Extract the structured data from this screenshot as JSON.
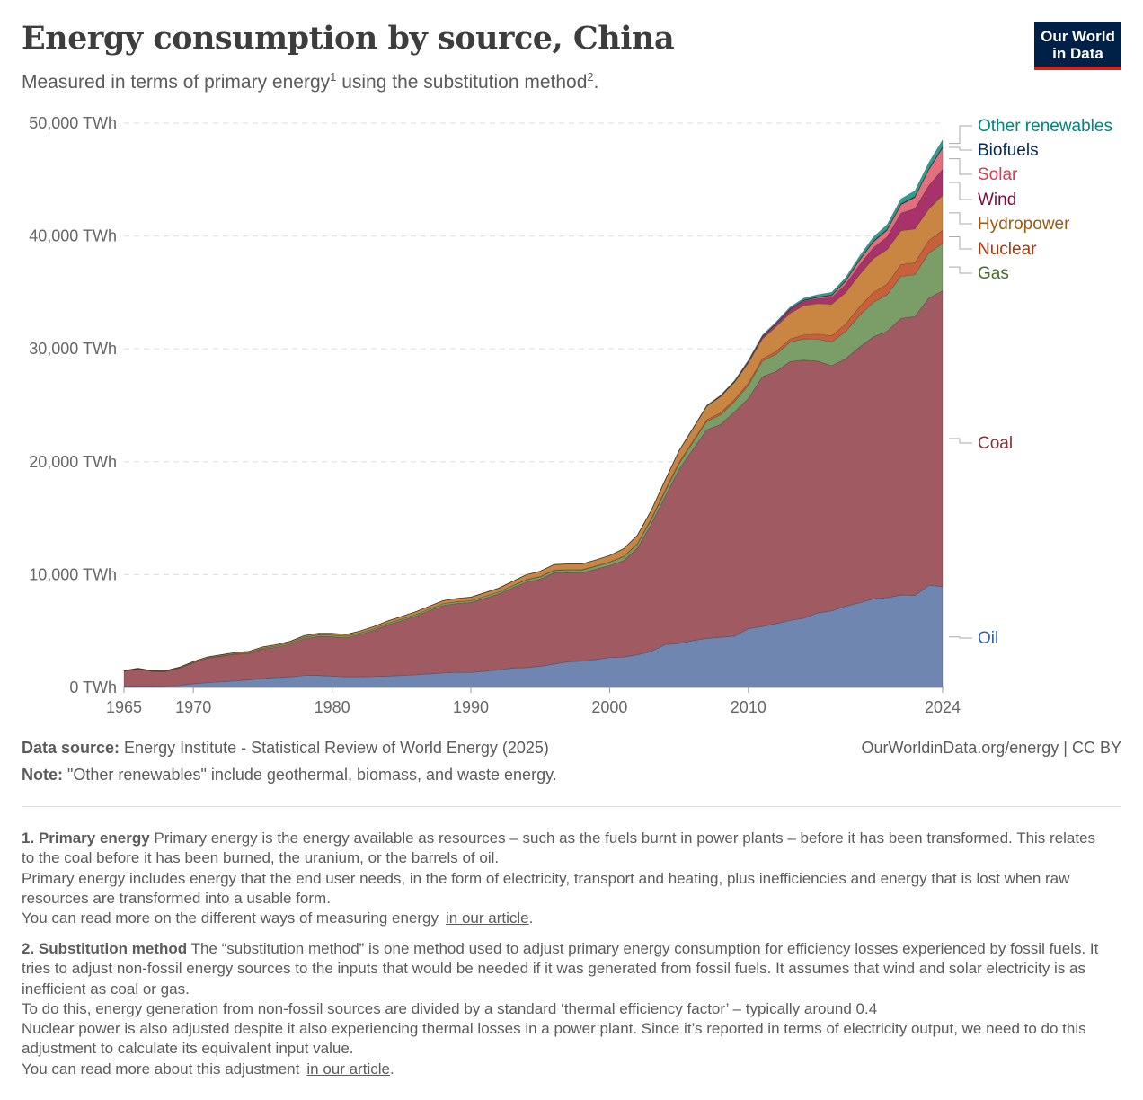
{
  "header": {
    "title": "Energy consumption by source, China",
    "subtitle_a": "Measured in terms of primary energy",
    "subtitle_sup1": "1",
    "subtitle_b": " using the substitution method",
    "subtitle_sup2": "2",
    "subtitle_c": ".",
    "logo": "Our World in Data"
  },
  "chart_data": {
    "type": "area",
    "stacked": true,
    "title": "Energy consumption by source, China",
    "ylabel": "",
    "ylim": [
      0,
      50000
    ],
    "yticks": [
      "0 TWh",
      "10,000 TWh",
      "20,000 TWh",
      "30,000 TWh",
      "40,000 TWh",
      "50,000 TWh"
    ],
    "ytick_values": [
      0,
      10000,
      20000,
      30000,
      40000,
      50000
    ],
    "xticks": [
      "1965",
      "1970",
      "1980",
      "1990",
      "2000",
      "2010",
      "2024"
    ],
    "xtick_values": [
      1965,
      1970,
      1980,
      1990,
      2000,
      2010,
      2024
    ],
    "grid": "horizontal dashed",
    "legend": "right, inline labels",
    "x_start": 1965,
    "x_end": 2024,
    "series": [
      {
        "name": "Oil",
        "color": "#6e86b0",
        "label_color": "#3360a9",
        "values": [
          110,
          120,
          120,
          130,
          180,
          330,
          420,
          500,
          580,
          680,
          800,
          880,
          950,
          1060,
          1070,
          1000,
          950,
          950,
          970,
          1000,
          1060,
          1130,
          1200,
          1290,
          1340,
          1330,
          1440,
          1570,
          1720,
          1760,
          1880,
          2080,
          2280,
          2330,
          2480,
          2650,
          2700,
          2900,
          3200,
          3800,
          3900,
          4150,
          4350,
          4450,
          4550,
          5200,
          5400,
          5650,
          5950,
          6150,
          6600,
          6800,
          7200,
          7500,
          7850,
          7950,
          8200,
          8150,
          9050,
          8950
        ]
      },
      {
        "name": "Coal",
        "color": "#a05a61",
        "label_color": "#883039",
        "values": [
          1340,
          1525,
          1320,
          1305,
          1540,
          1860,
          2150,
          2255,
          2355,
          2340,
          2590,
          2685,
          2900,
          3260,
          3435,
          3500,
          3445,
          3730,
          4090,
          4545,
          4860,
          5180,
          5600,
          5980,
          6100,
          6190,
          6460,
          6720,
          7110,
          7580,
          7710,
          8080,
          7910,
          7840,
          7995,
          8155,
          8545,
          9460,
          11260,
          13130,
          15405,
          16955,
          18485,
          18855,
          19865,
          20420,
          22125,
          22355,
          22930,
          22865,
          22310,
          21710,
          21910,
          22650,
          23220,
          23610,
          24510,
          24720,
          25450,
          26200
        ]
      },
      {
        "name": "Gas",
        "color": "#7b9e68",
        "label_color": "#4c6a2e",
        "values": [
          10,
          10,
          10,
          10,
          15,
          30,
          40,
          50,
          60,
          70,
          90,
          110,
          120,
          140,
          150,
          150,
          140,
          140,
          140,
          140,
          150,
          150,
          150,
          160,
          160,
          160,
          170,
          170,
          180,
          190,
          200,
          210,
          220,
          230,
          250,
          280,
          320,
          340,
          380,
          430,
          500,
          600,
          720,
          850,
          920,
          1150,
          1380,
          1520,
          1700,
          1880,
          1960,
          2100,
          2420,
          2800,
          3040,
          3250,
          3720,
          3700,
          4000,
          4200
        ]
      },
      {
        "name": "Nuclear",
        "color": "#c9603c",
        "label_color": "#b13507",
        "values": [
          0,
          0,
          0,
          0,
          0,
          0,
          0,
          0,
          0,
          0,
          0,
          0,
          0,
          0,
          0,
          0,
          0,
          0,
          0,
          0,
          0,
          0,
          0,
          0,
          0,
          0,
          0,
          0,
          0,
          40,
          40,
          40,
          40,
          40,
          45,
          45,
          45,
          65,
          110,
          130,
          135,
          140,
          160,
          175,
          180,
          190,
          230,
          250,
          290,
          340,
          440,
          550,
          640,
          760,
          880,
          930,
          1040,
          1060,
          1100,
          1150
        ]
      },
      {
        "name": "Hydropower",
        "color": "#c88642",
        "label_color": "#9a5c10",
        "values": [
          40,
          45,
          50,
          55,
          65,
          80,
          90,
          95,
          105,
          110,
          120,
          125,
          130,
          140,
          145,
          150,
          165,
          180,
          200,
          215,
          230,
          240,
          250,
          270,
          300,
          320,
          330,
          340,
          390,
          430,
          470,
          490,
          500,
          510,
          530,
          560,
          680,
          720,
          730,
          880,
          1020,
          1090,
          1200,
          1450,
          1520,
          1800,
          1730,
          2200,
          2280,
          2600,
          2700,
          2800,
          2800,
          2850,
          3000,
          3050,
          3000,
          3000,
          2800,
          3100
        ]
      },
      {
        "name": "Wind",
        "color": "#a8336a",
        "label_color": "#7a0c3b",
        "values": [
          0,
          0,
          0,
          0,
          0,
          0,
          0,
          0,
          0,
          0,
          0,
          0,
          0,
          0,
          0,
          0,
          0,
          0,
          0,
          0,
          0,
          0,
          0,
          0,
          0,
          0,
          0,
          0,
          0,
          0,
          0,
          0,
          0,
          0,
          0,
          0,
          0,
          0,
          0,
          0,
          0,
          10,
          15,
          35,
          70,
          120,
          190,
          250,
          340,
          380,
          440,
          580,
          720,
          850,
          950,
          1120,
          1550,
          1800,
          2060,
          2300
        ]
      },
      {
        "name": "Solar",
        "color": "#e2707d",
        "label_color": "#d73c50",
        "values": [
          0,
          0,
          0,
          0,
          0,
          0,
          0,
          0,
          0,
          0,
          0,
          0,
          0,
          0,
          0,
          0,
          0,
          0,
          0,
          0,
          0,
          0,
          0,
          0,
          0,
          0,
          0,
          0,
          0,
          0,
          0,
          0,
          0,
          0,
          0,
          0,
          0,
          0,
          0,
          0,
          0,
          0,
          0,
          0,
          0,
          2,
          5,
          10,
          20,
          60,
          95,
          170,
          290,
          420,
          530,
          610,
          750,
          990,
          1400,
          1900
        ]
      },
      {
        "name": "Biofuels",
        "color": "#2a3560",
        "label_color": "#00295b",
        "values": [
          0,
          0,
          0,
          0,
          0,
          0,
          0,
          0,
          0,
          0,
          0,
          0,
          0,
          0,
          0,
          0,
          0,
          0,
          0,
          0,
          0,
          0,
          0,
          0,
          0,
          0,
          0,
          0,
          0,
          0,
          0,
          0,
          0,
          0,
          0,
          0,
          0,
          5,
          10,
          15,
          20,
          25,
          30,
          35,
          35,
          40,
          40,
          45,
          50,
          55,
          55,
          60,
          60,
          70,
          80,
          80,
          80,
          80,
          90,
          100
        ]
      },
      {
        "name": "Other renewables",
        "color": "#2f9e8f",
        "label_color": "#00847e",
        "values": [
          0,
          0,
          0,
          0,
          0,
          0,
          0,
          0,
          0,
          0,
          0,
          0,
          0,
          0,
          0,
          0,
          0,
          0,
          0,
          0,
          0,
          0,
          0,
          0,
          0,
          0,
          0,
          0,
          0,
          0,
          0,
          0,
          0,
          0,
          0,
          10,
          10,
          10,
          12,
          15,
          20,
          30,
          40,
          50,
          60,
          80,
          100,
          120,
          140,
          170,
          200,
          230,
          260,
          300,
          350,
          400,
          450,
          500,
          550,
          600
        ]
      }
    ]
  },
  "footer": {
    "source_label": "Data source:",
    "source": " Energy Institute - Statistical Review of World Energy (2025)",
    "note_label": "Note:",
    "note": " \"Other renewables\" include geothermal, biomass, and waste energy.",
    "credit": "OurWorldinData.org/energy  | CC BY"
  },
  "footnotes": [
    {
      "label": "1. Primary energy",
      "lines": [
        " Primary energy is the energy available as resources – such as the fuels burnt in power plants – before it has been transformed. This relates to the coal before it has been burned, the uranium, or the barrels of oil.",
        "Primary energy includes energy that the end user needs, in the form of electricity, transport and heating, plus inefficiencies and energy that is lost when raw resources are transformed into a usable form.",
        "You can read more on the different ways of measuring energy"
      ],
      "link": "in our article",
      "after": "."
    },
    {
      "label": "2. Substitution method",
      "lines": [
        " The “substitution method” is one method used to adjust primary energy consumption for efficiency losses experienced by fossil fuels. It tries to adjust non-fossil energy sources to the inputs that would be needed if it was generated from fossil fuels. It assumes that wind and solar electricity is as inefficient as coal or gas.",
        "To do this, energy generation from non-fossil sources are divided by a standard ‘thermal efficiency factor’ – typically around 0.4",
        "Nuclear power is also adjusted despite it also experiencing thermal losses in a power plant. Since it’s reported in terms of electricity output, we need to do this adjustment to calculate its equivalent input value.",
        "You can read more about this adjustment"
      ],
      "link": "in our article",
      "after": "."
    }
  ]
}
